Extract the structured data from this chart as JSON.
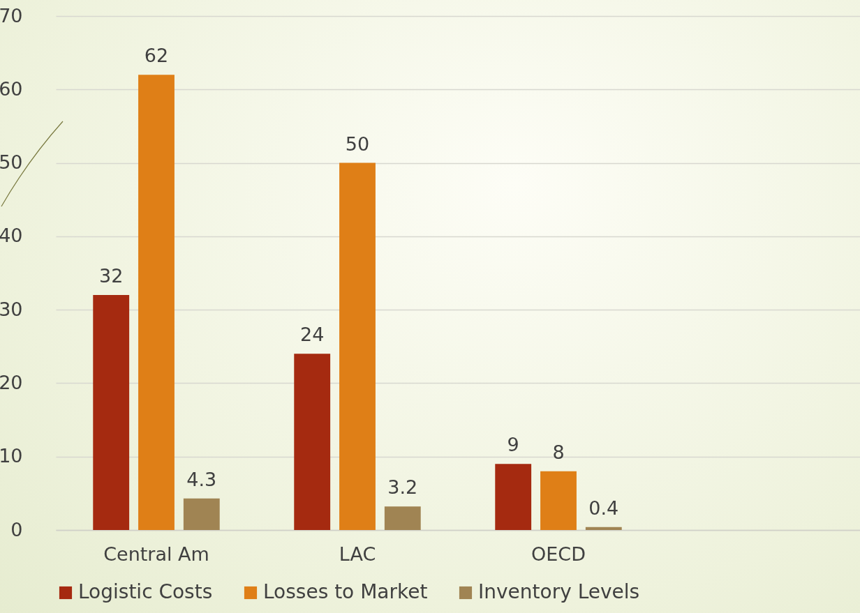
{
  "chart_data": {
    "type": "bar",
    "categories": [
      "Central Am",
      "LAC",
      "OECD",
      null
    ],
    "series": [
      {
        "name": "Logistic Costs",
        "color": "#a52a10",
        "values": [
          32,
          24,
          9,
          null
        ]
      },
      {
        "name": "Losses to Market",
        "color": "#df7f17",
        "values": [
          62,
          50,
          8,
          null
        ]
      },
      {
        "name": "Inventory Levels",
        "color": "#a08453",
        "values": [
          4.3,
          3.2,
          0.4,
          null
        ]
      }
    ],
    "ylim": [
      0,
      70
    ],
    "yticks": [
      0,
      10,
      20,
      30,
      40,
      50,
      60,
      70
    ],
    "grid": "y",
    "legend": "bottom",
    "data_labels": true
  }
}
